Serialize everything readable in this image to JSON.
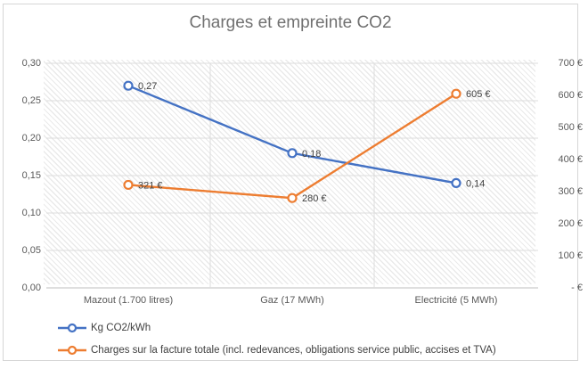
{
  "title": "Charges et empreinte CO2",
  "colors": {
    "series1": "#4472C4",
    "series2": "#ED7D31",
    "gridline": "#dcdcdc",
    "axis_line": "#bfbfbf",
    "tick_text": "#595959",
    "data_label_text": "#404040"
  },
  "chart_data": {
    "type": "line",
    "title": "Charges et empreinte CO2",
    "categories": [
      "Mazout (1.700 litres)",
      "Gaz (17 MWh)",
      "Electricité (5 MWh)"
    ],
    "series": [
      {
        "name": "Kg CO2/kWh",
        "axis": "left",
        "color": "#4472C4",
        "values": [
          0.27,
          0.18,
          0.14
        ],
        "labels": [
          "0,27",
          "0,18",
          "0,14"
        ]
      },
      {
        "name": "Charges sur la facture totale (incl. redevances, obligations service public, accises et TVA)",
        "axis": "right",
        "color": "#ED7D31",
        "values": [
          321,
          280,
          605
        ],
        "labels": [
          "321 €",
          "280 €",
          "605 €"
        ]
      }
    ],
    "left_axis": {
      "min": 0,
      "max": 0.3,
      "ticks": [
        "0,30",
        "0,25",
        "0,20",
        "0,15",
        "0,10",
        "0,05",
        "0,00"
      ]
    },
    "right_axis": {
      "min": 0,
      "max": 700,
      "ticks": [
        "700 €",
        "600 €",
        "500 €",
        "400 €",
        "300 €",
        "200 €",
        "100 €",
        "- €"
      ]
    },
    "grid": true,
    "plot_background": "diagonal-hatch",
    "legend_position": "bottom-left",
    "marker": "circle"
  }
}
